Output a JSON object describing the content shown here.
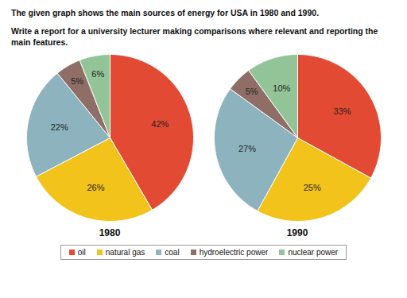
{
  "chart_data": {
    "type": "pie",
    "title": "The given graph shows the main sources of energy for USA in 1980 and 1990.",
    "subtitle": "Write a report for a university lecturer making comparisons where relevant and reporting the main features.",
    "categories": [
      "oil",
      "natural gas",
      "coal",
      "hydroelectric power",
      "nuclear power"
    ],
    "colors": [
      "#e24a33",
      "#f2c31b",
      "#8db3be",
      "#8e6e66",
      "#93c497"
    ],
    "series": [
      {
        "name": "1980",
        "values": [
          42,
          26,
          22,
          5,
          6
        ],
        "value_labels": [
          "42%",
          "26%",
          "22%",
          "5%",
          "6%"
        ]
      },
      {
        "name": "1990",
        "values": [
          33,
          25,
          27,
          5,
          10
        ],
        "value_labels": [
          "33%",
          "25%",
          "27%",
          "5%",
          "10%"
        ]
      }
    ],
    "data_labels": true,
    "legend": "bottom"
  }
}
